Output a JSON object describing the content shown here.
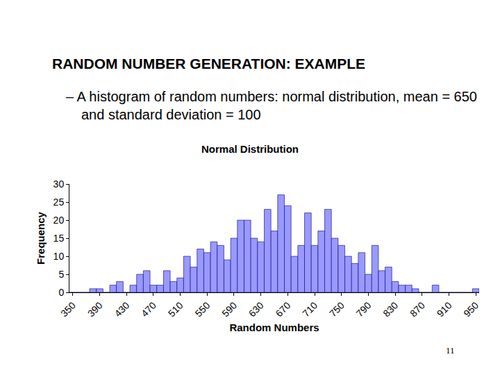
{
  "slide": {
    "heading": "RANDOM NUMBER GENERATION: EXAMPLE",
    "bullet": "– A histogram of random numbers: normal distribution, mean = 650 and standard deviation = 100",
    "page_number": "11"
  },
  "chart_data": {
    "type": "histogram",
    "title": "Normal Distribution",
    "x_label": "Random Numbers",
    "y_label": "Frequency",
    "bins": [
      345,
      355,
      365,
      375,
      385,
      395,
      405,
      415,
      425,
      435,
      445,
      455,
      465,
      475,
      485,
      495,
      505,
      515,
      525,
      535,
      545,
      555,
      565,
      575,
      585,
      595,
      605,
      615,
      625,
      635,
      645,
      655,
      665,
      675,
      685,
      695,
      705,
      715,
      725,
      735,
      745,
      755,
      765,
      775,
      785,
      795,
      805,
      815,
      825,
      835,
      845,
      855,
      865,
      875,
      885,
      895,
      905,
      915,
      925,
      935,
      945,
      955
    ],
    "values": [
      0,
      0,
      0,
      1,
      1,
      0,
      2,
      3,
      0,
      2,
      5,
      6,
      2,
      2,
      6,
      3,
      4,
      10,
      7,
      12,
      11,
      14,
      13,
      9,
      15,
      20,
      20,
      15,
      14,
      23,
      17,
      27,
      24,
      10,
      13,
      22,
      13,
      17,
      23,
      15,
      13,
      10,
      8,
      11,
      5,
      13,
      6,
      7,
      3,
      2,
      2,
      1,
      0,
      0,
      2,
      0,
      0,
      0,
      0,
      0,
      1
    ],
    "color": "#9999ff",
    "xlim": [
      345,
      955
    ],
    "xticks": [
      350,
      390,
      430,
      470,
      510,
      550,
      590,
      630,
      670,
      710,
      750,
      790,
      830,
      870,
      910,
      950
    ],
    "ylim": [
      0,
      30
    ],
    "yticks": [
      0,
      5,
      10,
      15,
      20,
      25,
      30
    ],
    "grid": false
  }
}
